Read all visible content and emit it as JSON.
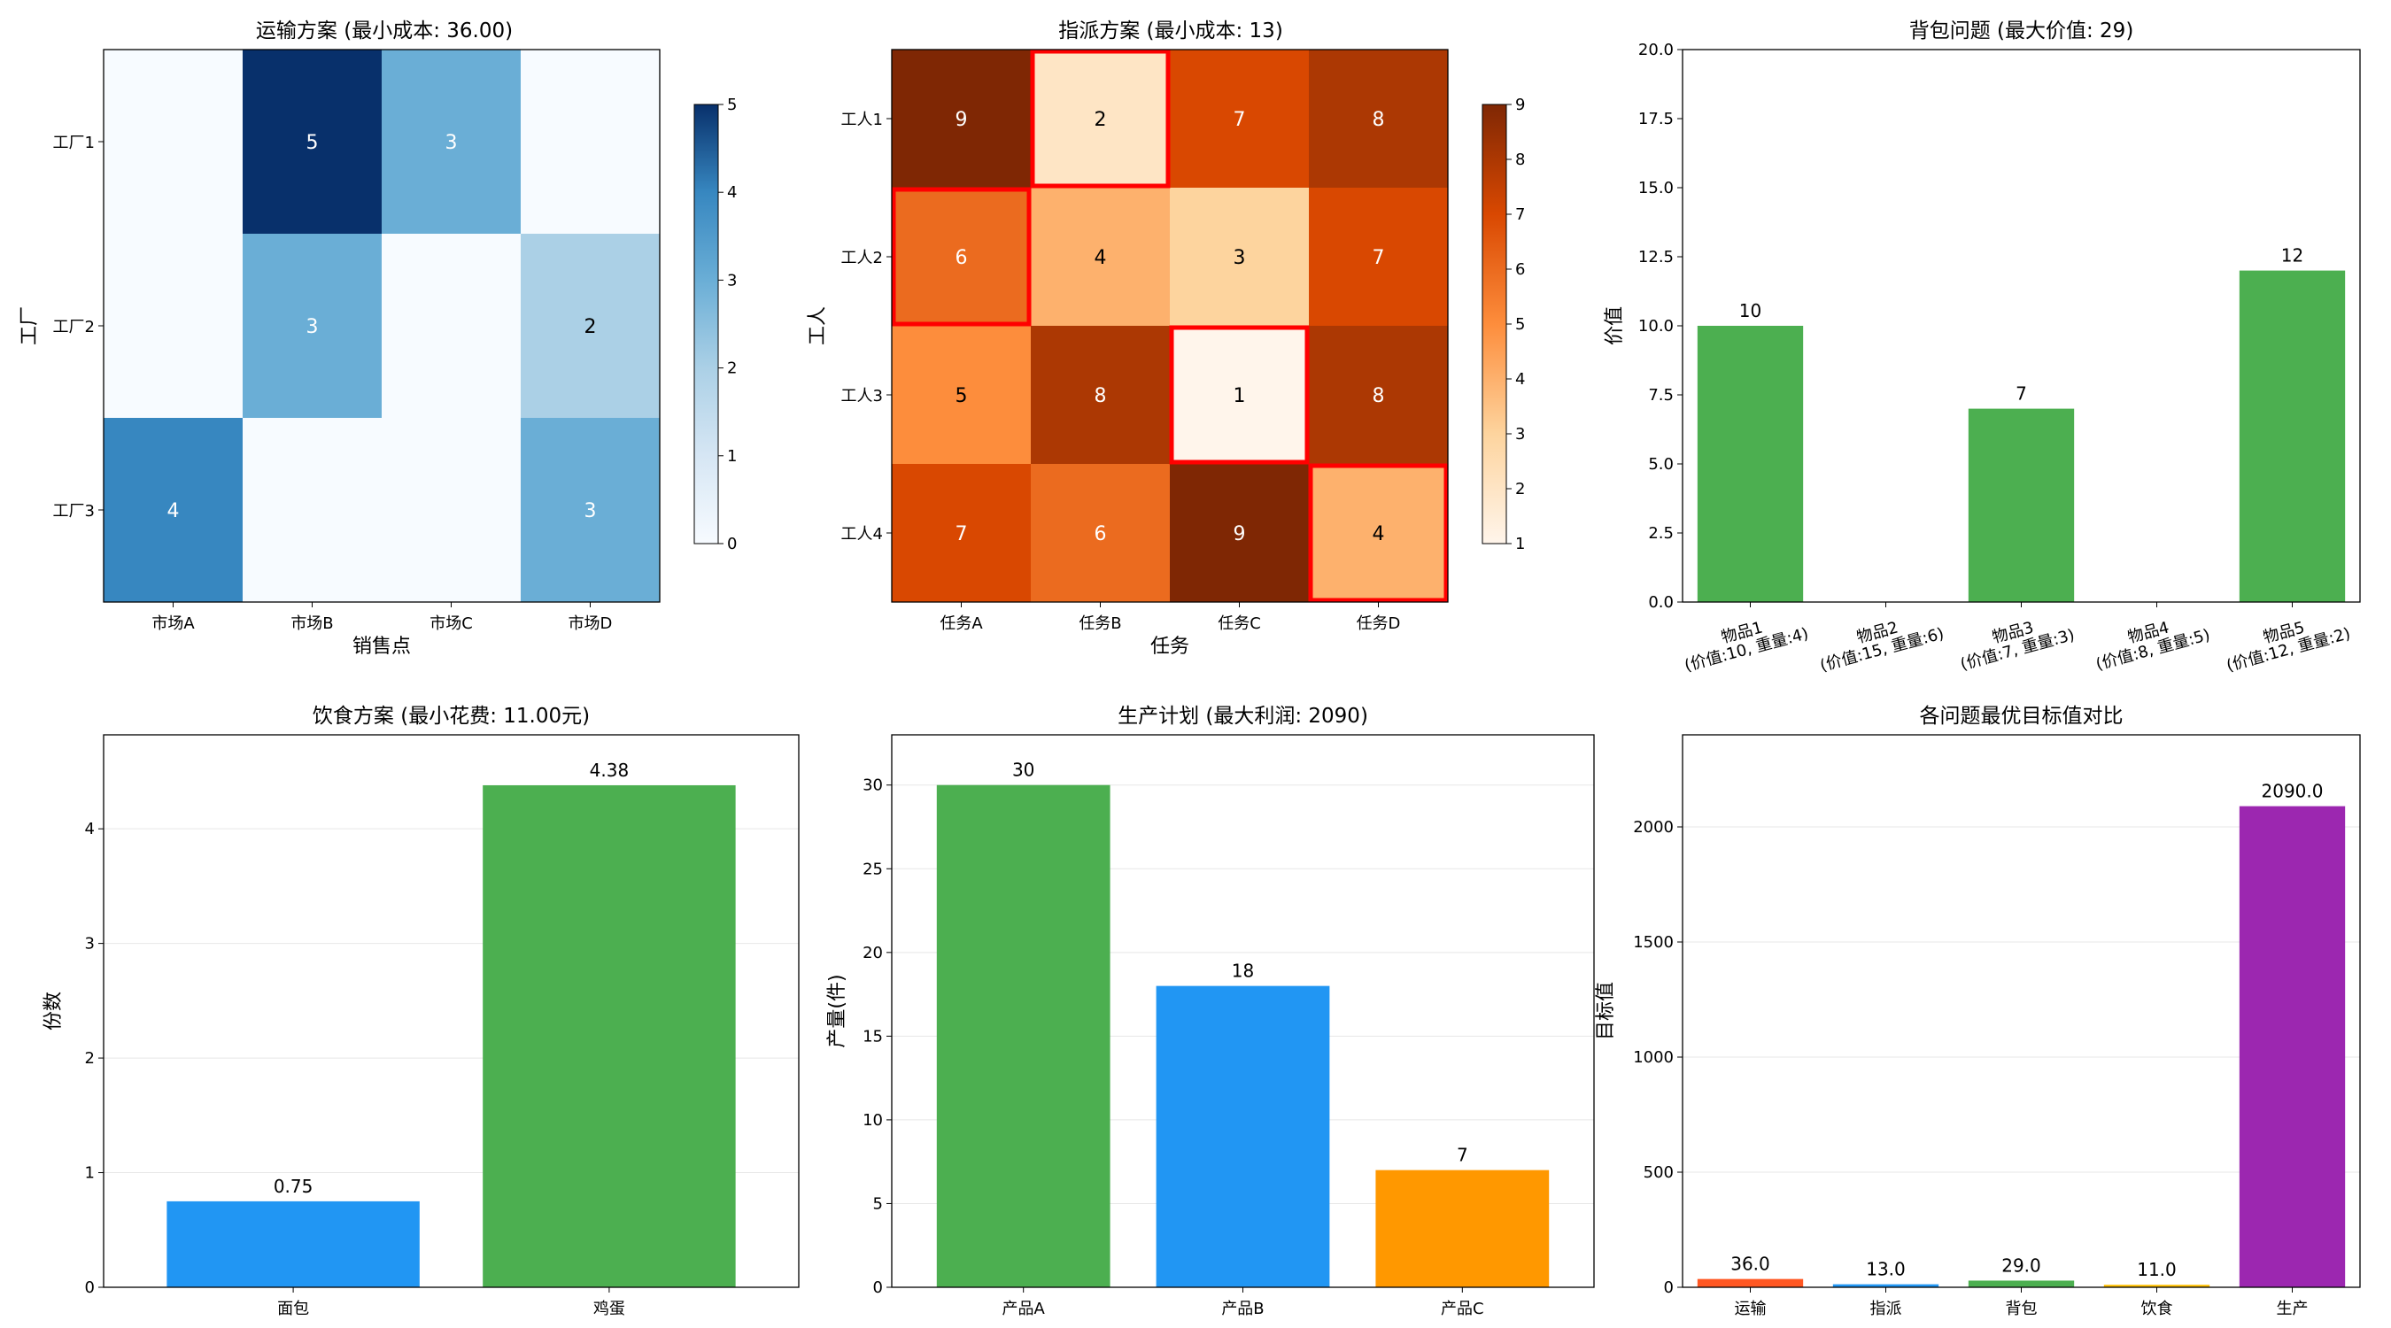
{
  "chart_data": [
    {
      "type": "heatmap",
      "title": "运输方案 (最小成本: 36.00)",
      "xlabel": "销售点",
      "ylabel": "工厂",
      "x_categories": [
        "市场A",
        "市场B",
        "市场C",
        "市场D"
      ],
      "y_categories": [
        "工厂1",
        "工厂2",
        "工厂3"
      ],
      "values": [
        [
          0,
          5,
          3,
          0
        ],
        [
          0,
          3,
          0,
          2
        ],
        [
          4,
          0,
          0,
          3
        ]
      ],
      "colorscale": "Blues",
      "vmin": 0,
      "vmax": 5,
      "colorbar_ticks": [
        "0",
        "1",
        "2",
        "3",
        "4",
        "5"
      ]
    },
    {
      "type": "heatmap",
      "title": "指派方案 (最小成本: 13)",
      "xlabel": "任务",
      "ylabel": "工人",
      "x_categories": [
        "任务A",
        "任务B",
        "任务C",
        "任务D"
      ],
      "y_categories": [
        "工人1",
        "工人2",
        "工人3",
        "工人4"
      ],
      "values": [
        [
          9,
          2,
          7,
          8
        ],
        [
          6,
          4,
          3,
          7
        ],
        [
          5,
          8,
          1,
          8
        ],
        [
          7,
          6,
          9,
          4
        ]
      ],
      "highlighted": [
        [
          0,
          1
        ],
        [
          1,
          0
        ],
        [
          2,
          2
        ],
        [
          3,
          3
        ]
      ],
      "highlight_color": "#ff0000",
      "colorscale": "Oranges",
      "vmin": 1,
      "vmax": 9,
      "colorbar_ticks": [
        "1",
        "2",
        "3",
        "4",
        "5",
        "6",
        "7",
        "8",
        "9"
      ]
    },
    {
      "type": "bar",
      "title": "背包问题 (最大价值: 29)",
      "ylabel": "价值",
      "categories": [
        "物品1\n(价值:10, 重量:4)",
        "物品2\n(价值:15, 重量:6)",
        "物品3\n(价值:7, 重量:3)",
        "物品4\n(价值:8, 重量:5)",
        "物品5\n(价值:12, 重量:2)"
      ],
      "values": [
        10,
        0,
        7,
        0,
        12
      ],
      "labels": [
        "10",
        "",
        "7",
        "",
        "12"
      ],
      "colors": [
        "#4caf50",
        "#4caf50",
        "#4caf50",
        "#4caf50",
        "#4caf50"
      ],
      "ylim": [
        0,
        20
      ],
      "yticks": [
        "0.0",
        "2.5",
        "5.0",
        "7.5",
        "10.0",
        "12.5",
        "15.0",
        "17.5",
        "20.0"
      ]
    },
    {
      "type": "bar",
      "title": "饮食方案 (最小花费: 11.00元)",
      "ylabel": "份数",
      "categories": [
        "面包",
        "鸡蛋"
      ],
      "values": [
        0.75,
        4.38
      ],
      "labels": [
        "0.75",
        "4.38"
      ],
      "colors": [
        "#2196f3",
        "#4caf50"
      ],
      "ylim": [
        0,
        4.82
      ],
      "yticks": [
        "0",
        "1",
        "2",
        "3",
        "4"
      ],
      "grid": true
    },
    {
      "type": "bar",
      "title": "生产计划 (最大利润: 2090)",
      "ylabel": "产量(件)",
      "categories": [
        "产品A",
        "产品B",
        "产品C"
      ],
      "values": [
        30,
        18,
        7
      ],
      "labels": [
        "30",
        "18",
        "7"
      ],
      "colors": [
        "#4caf50",
        "#2196f3",
        "#ff9800"
      ],
      "ylim": [
        0,
        33
      ],
      "yticks": [
        "0",
        "5",
        "10",
        "15",
        "20",
        "25",
        "30"
      ],
      "grid": true
    },
    {
      "type": "bar",
      "title": "各问题最优目标值对比",
      "ylabel": "目标值",
      "categories": [
        "运输",
        "指派",
        "背包",
        "饮食",
        "生产"
      ],
      "values": [
        36.0,
        13.0,
        29.0,
        11.0,
        2090.0
      ],
      "labels": [
        "36.0",
        "13.0",
        "29.0",
        "11.0",
        "2090.0"
      ],
      "colors": [
        "#ff5722",
        "#2196f3",
        "#4caf50",
        "#ffc107",
        "#9c27b0"
      ],
      "ylim": [
        0,
        2400
      ],
      "yticks": [
        "0",
        "500",
        "1000",
        "1500",
        "2000"
      ],
      "grid": true
    }
  ]
}
